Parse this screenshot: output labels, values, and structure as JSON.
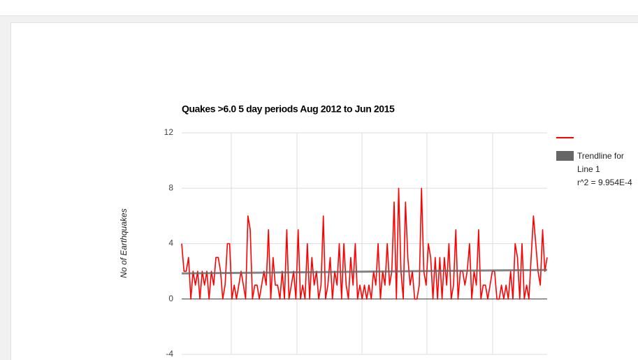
{
  "chart_data": {
    "type": "line",
    "title": "Quakes >6.0 5 day periods Aug 2012 to Jun 2015",
    "y_label": "No of Earthquakes",
    "ylim": [
      -4,
      12
    ],
    "yticks": [
      -4,
      0,
      4,
      8,
      12
    ],
    "grid": true,
    "series": [
      {
        "color": "#ff0000",
        "values": [
          4,
          2,
          2,
          3,
          0,
          2,
          1,
          2,
          0,
          2,
          1,
          2,
          0,
          2,
          1,
          3,
          3,
          2,
          0,
          1,
          4,
          4,
          0,
          1,
          0,
          1,
          2,
          1,
          0,
          6,
          5,
          0,
          1,
          1,
          0,
          1,
          2,
          1,
          5,
          0,
          3,
          1,
          1,
          0,
          2,
          0,
          5,
          0,
          1,
          2,
          0,
          5,
          0,
          1,
          0,
          4,
          0,
          3,
          1,
          2,
          0,
          1,
          6,
          0,
          1,
          3,
          0,
          2,
          1,
          4,
          0,
          4,
          1,
          0,
          3,
          1,
          4,
          0,
          1,
          0,
          1,
          0,
          1,
          0,
          2,
          1,
          4,
          0,
          2,
          1,
          4,
          1,
          2,
          7,
          0,
          8,
          2,
          0,
          7,
          3,
          1,
          2,
          0,
          0,
          1,
          8,
          2,
          1,
          4,
          3,
          0,
          3,
          0,
          3,
          0,
          3,
          1,
          4,
          0,
          1,
          5,
          0,
          2,
          2,
          1,
          2,
          4,
          0,
          2,
          1,
          5,
          0,
          1,
          1,
          0,
          1,
          2,
          2,
          0,
          0,
          1,
          0,
          1,
          0,
          2,
          0,
          4,
          3,
          0,
          4,
          0,
          1,
          0,
          3,
          6,
          4,
          2,
          1,
          5,
          2,
          3
        ]
      }
    ],
    "categories": null,
    "trendline": {
      "name": "Trendline for Line 1",
      "label": "r^2 = 9.954E-4",
      "color": "#666666",
      "start": 1.85,
      "end": 2.1
    }
  }
}
